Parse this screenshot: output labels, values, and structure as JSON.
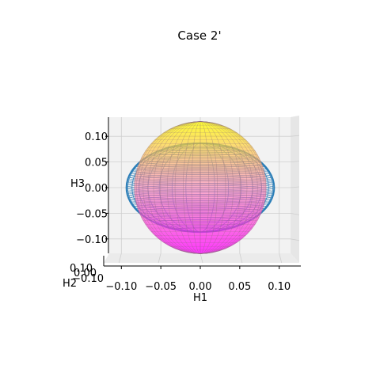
{
  "chart_data": {
    "type": "3d-surface",
    "title": "Case 2'",
    "xlabel": "H1",
    "ylabel": "H2",
    "zlabel": "H3",
    "xlim": [
      -0.12,
      0.12
    ],
    "ylim": [
      -0.12,
      0.12
    ],
    "zlim": [
      -0.12,
      0.12
    ],
    "xticks": [
      "−0.10",
      "−0.05",
      "0.00",
      "0.05",
      "0.10"
    ],
    "yticks": [
      "−0.10",
      "0.00",
      "0.10"
    ],
    "zticks": [
      "0.10",
      "0.05",
      "0.00",
      "−0.05",
      "−0.10"
    ],
    "grid": true,
    "series": [
      {
        "kind": "wireframe ellipsoid",
        "color": "#1f77b4",
        "radii": {
          "H1": 0.11,
          "H2": 0.11,
          "H3": 0.085
        }
      },
      {
        "kind": "sphere surface",
        "colormap": "spring",
        "colormap_colors": [
          "#ff00ff",
          "#ffff00"
        ],
        "radius": 0.115
      }
    ]
  }
}
